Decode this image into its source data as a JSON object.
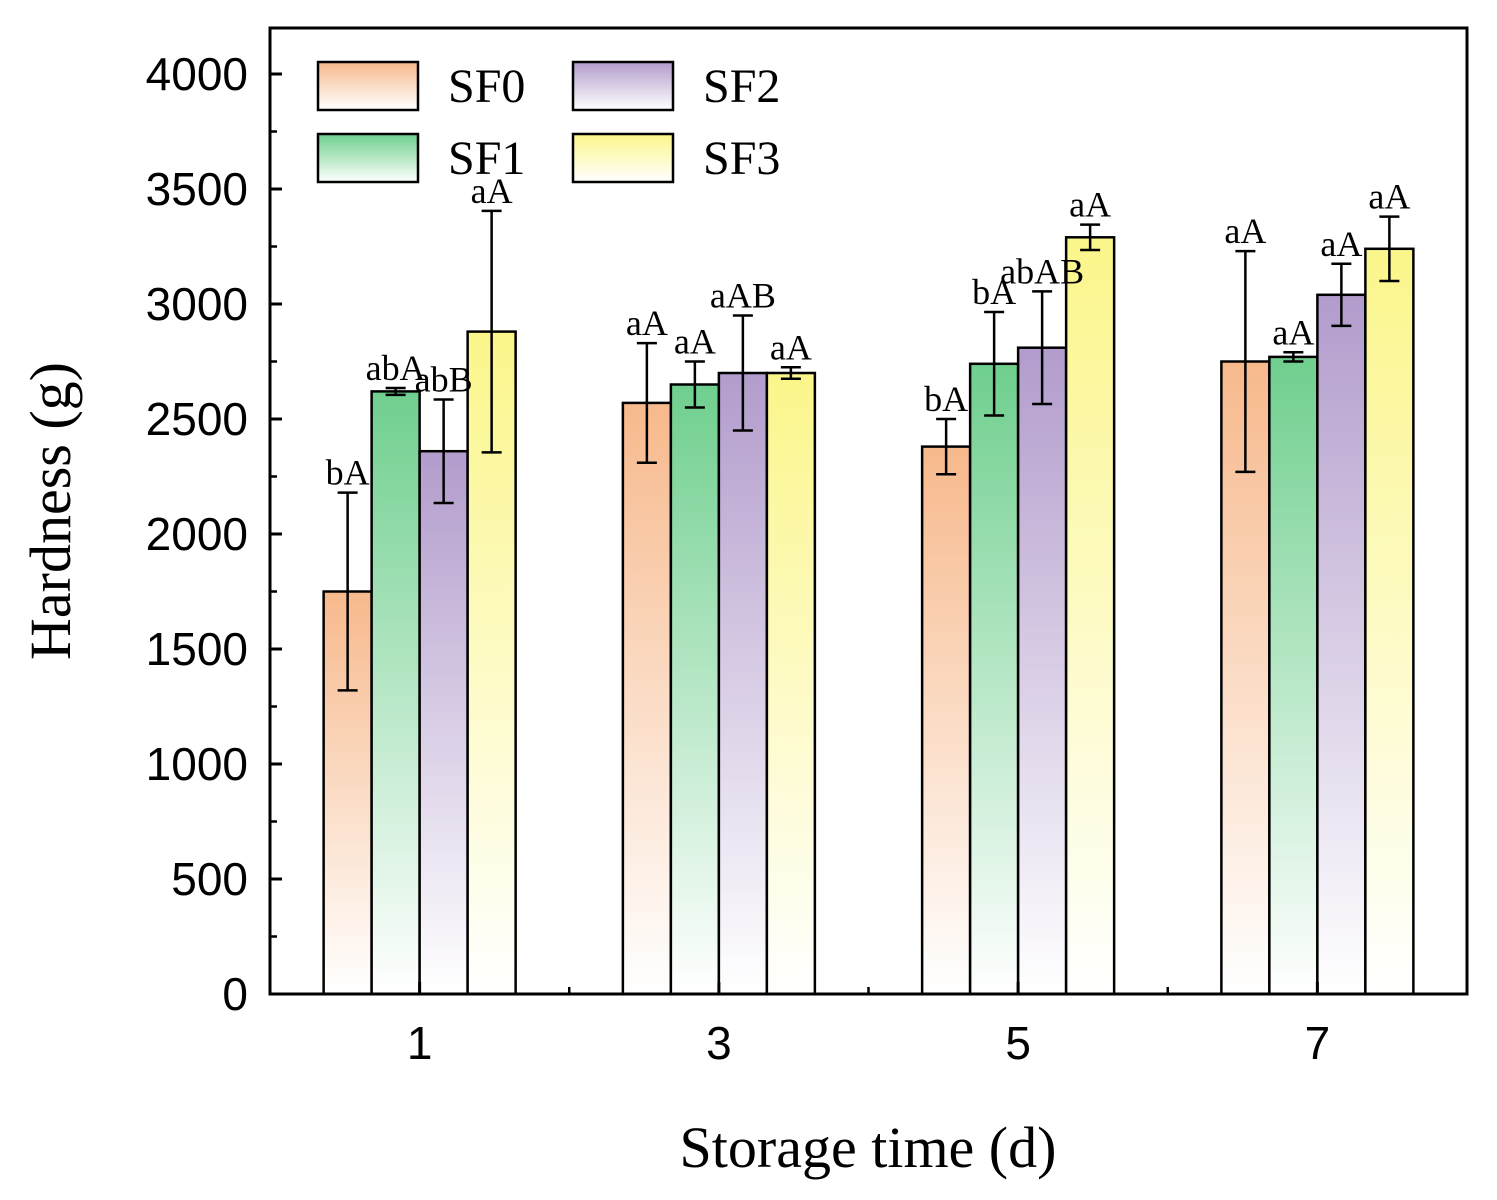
{
  "chart_data": {
    "type": "bar",
    "title": "",
    "xlabel": "Storage time (d)",
    "ylabel": "Hardness (g)",
    "categories": [
      "1",
      "3",
      "5",
      "7"
    ],
    "ylim": [
      0,
      4200
    ],
    "yticks": [
      0,
      500,
      1000,
      1500,
      2000,
      2500,
      3000,
      3500,
      4000
    ],
    "legend_position": "top-left",
    "series": [
      {
        "name": "SF0",
        "values": [
          1750,
          2570,
          2380,
          2750
        ],
        "errors": [
          430,
          260,
          120,
          480
        ],
        "labels": [
          "bA",
          "aA",
          "bA",
          "aA"
        ],
        "color_top": "#f7b98c",
        "color_bottom": "#ffffff"
      },
      {
        "name": "SF1",
        "values": [
          2620,
          2650,
          2740,
          2770
        ],
        "errors": [
          15,
          100,
          225,
          20
        ],
        "labels": [
          "abA",
          "aA",
          "bA",
          "aA"
        ],
        "color_top": "#6fcf8e",
        "color_bottom": "#ffffff"
      },
      {
        "name": "SF2",
        "values": [
          2360,
          2700,
          2810,
          3040
        ],
        "errors": [
          225,
          250,
          245,
          135
        ],
        "labels": [
          "abB",
          "aAB",
          "abAB",
          "aA"
        ],
        "color_top": "#b29ccc",
        "color_bottom": "#ffffff"
      },
      {
        "name": "SF3",
        "values": [
          2880,
          2700,
          3290,
          3240
        ],
        "errors": [
          525,
          25,
          55,
          140
        ],
        "labels": [
          "aA",
          "aA",
          "aA",
          "aA"
        ],
        "color_top": "#fbf68a",
        "color_bottom": "#ffffff"
      }
    ]
  }
}
